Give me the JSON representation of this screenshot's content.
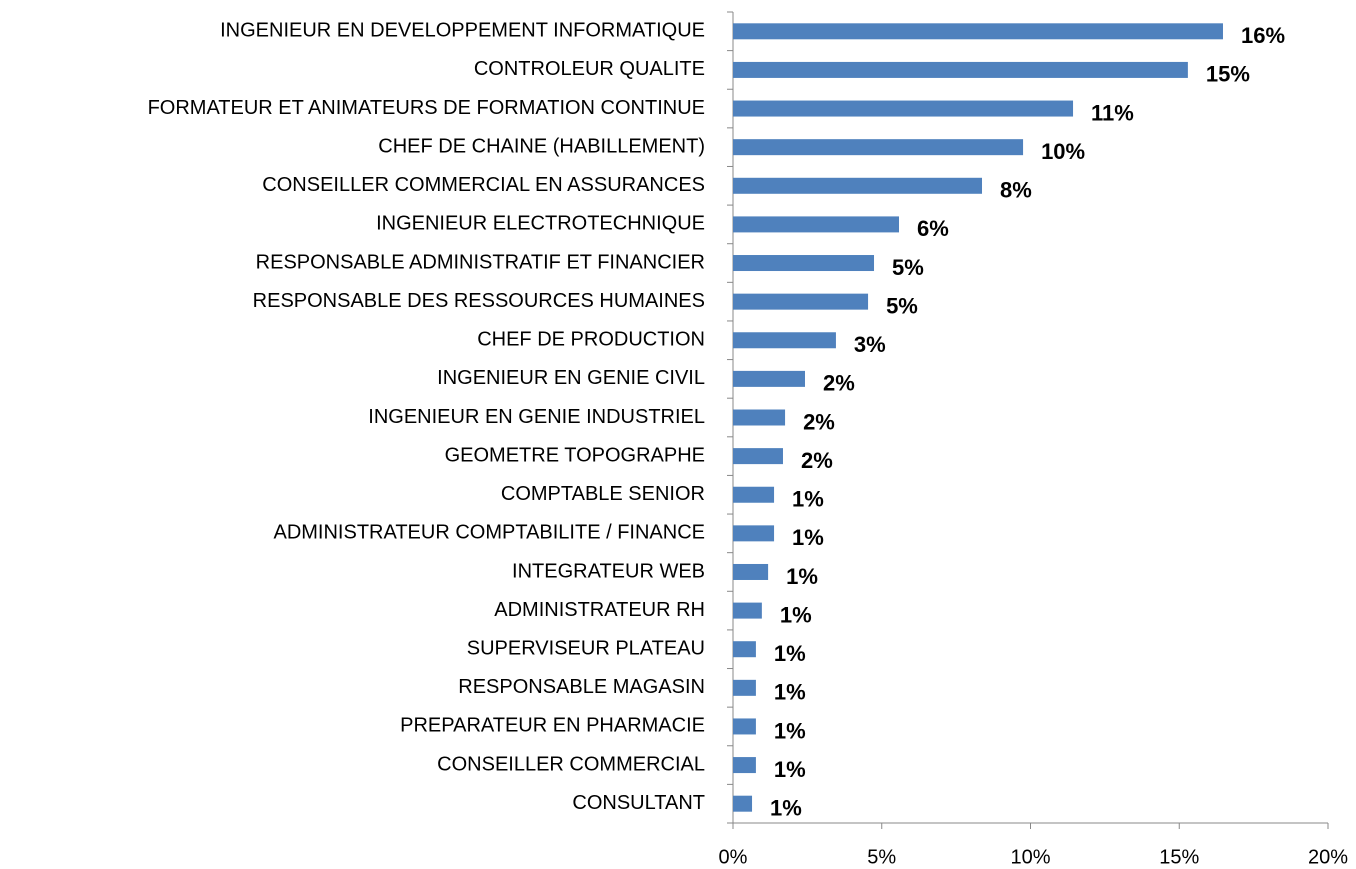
{
  "chart_data": {
    "type": "bar",
    "orientation": "horizontal",
    "categories": [
      "INGENIEUR EN DEVELOPPEMENT INFORMATIQUE",
      "CONTROLEUR QUALITE",
      "FORMATEUR ET ANIMATEURS DE FORMATION CONTINUE",
      "CHEF DE CHAINE (HABILLEMENT)",
      "CONSEILLER COMMERCIAL EN ASSURANCES",
      "INGENIEUR ELECTROTECHNIQUE",
      "RESPONSABLE ADMINISTRATIF ET FINANCIER",
      "RESPONSABLE DES RESSOURCES HUMAINES",
      "CHEF DE PRODUCTION",
      "INGENIEUR EN GENIE CIVIL",
      "INGENIEUR EN GENIE INDUSTRIEL",
      "GEOMETRE TOPOGRAPHE",
      "COMPTABLE SENIOR",
      "ADMINISTRATEUR COMPTABILITE / FINANCE",
      "INTEGRATEUR WEB",
      "ADMINISTRATEUR RH",
      "SUPERVISEUR PLATEAU",
      "RESPONSABLE MAGASIN",
      "PREPARATEUR EN PHARMACIE",
      "CONSEILLER COMMERCIAL",
      "CONSULTANT"
    ],
    "values": [
      16.47,
      15.29,
      11.43,
      9.75,
      8.37,
      5.58,
      4.74,
      4.54,
      3.46,
      2.42,
      1.75,
      1.68,
      1.38,
      1.38,
      1.18,
      0.97,
      0.77,
      0.77,
      0.77,
      0.77,
      0.64
    ],
    "value_labels": [
      "16%",
      "15%",
      "11%",
      "10%",
      "8%",
      "6%",
      "5%",
      "5%",
      "3%",
      "2%",
      "2%",
      "2%",
      "1%",
      "1%",
      "1%",
      "1%",
      "1%",
      "1%",
      "1%",
      "1%",
      "1%"
    ],
    "color": "#4f81bd",
    "xlim": [
      0,
      20
    ],
    "xticks": [
      {
        "value": 0,
        "label": "0%"
      },
      {
        "value": 5,
        "label": "5%"
      },
      {
        "value": 10,
        "label": "10%"
      },
      {
        "value": 15,
        "label": "15%"
      },
      {
        "value": 20,
        "label": "20%"
      }
    ],
    "grid": false
  }
}
